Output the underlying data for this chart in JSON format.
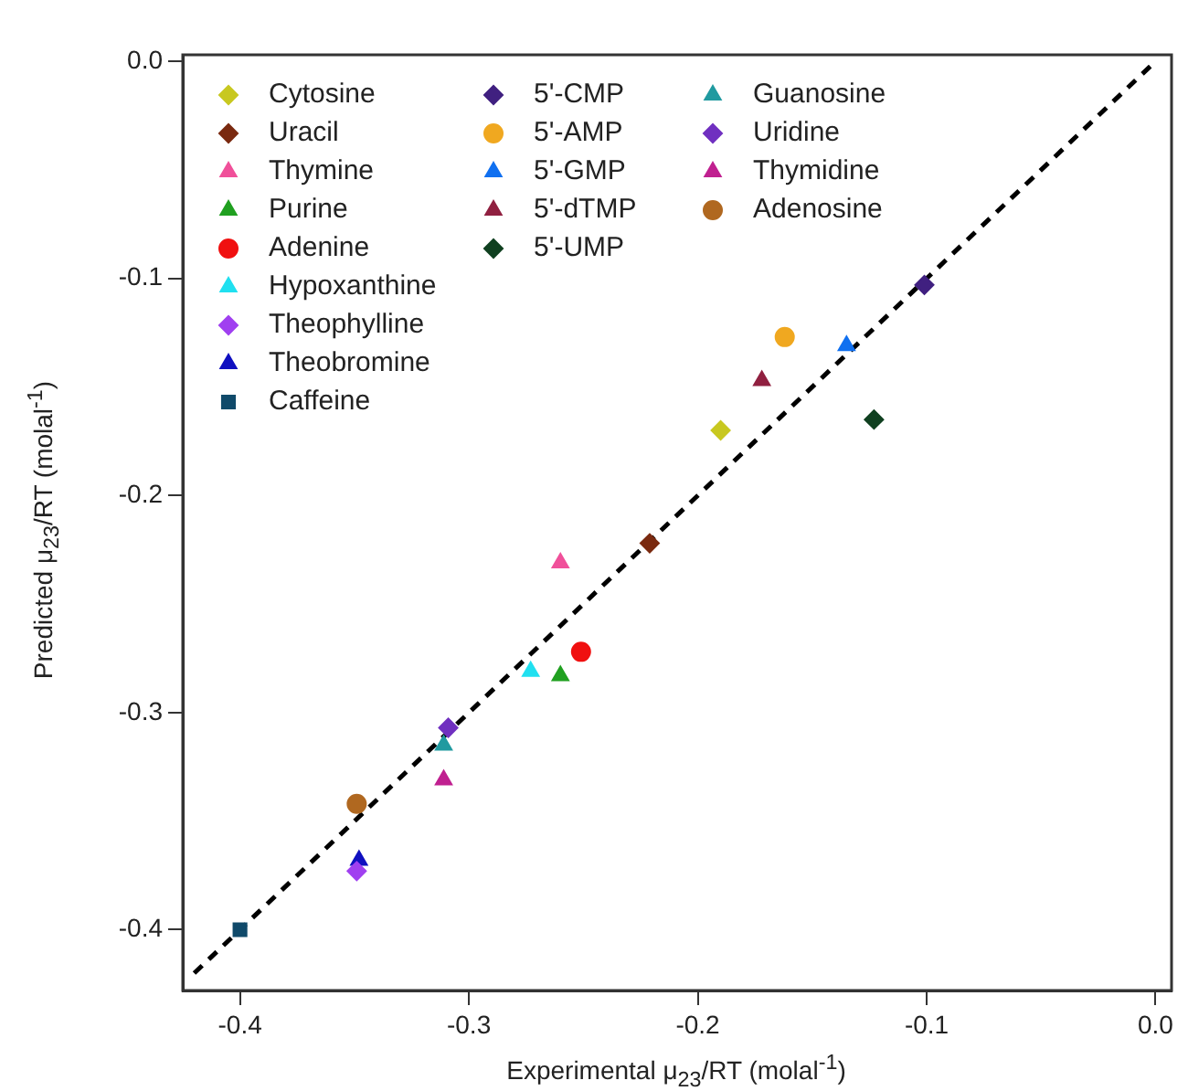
{
  "chart_data": {
    "type": "scatter",
    "xlabel": "Experimental μ$_{23}$/RT (molal$^{-1}$)",
    "ylabel": "Predicted μ$_{23}$/RT (molal$^{-1}$)",
    "xlim": [
      -0.425,
      0.007
    ],
    "ylim": [
      -0.428,
      0.003
    ],
    "xticks": [
      -0.4,
      -0.3,
      -0.2,
      -0.1,
      {
        "value": 0,
        "label": "0.0"
      }
    ],
    "yticks": [
      -0.4,
      -0.3,
      -0.2,
      -0.1,
      {
        "value": 0,
        "label": "0.0"
      }
    ],
    "grid": false,
    "legend": "top left",
    "series": [
      {
        "name": "Cytosine",
        "color": "#c8c820",
        "marker": "diamond",
        "x": [
          -0.19
        ],
        "values": [
          -0.17
        ]
      },
      {
        "name": "Uracil",
        "color": "#7a2a10",
        "marker": "diamond",
        "x": [
          -0.221
        ],
        "values": [
          -0.222
        ]
      },
      {
        "name": "Thymine",
        "color": "#f0509a",
        "marker": "triangle",
        "x": [
          -0.26
        ],
        "values": [
          -0.231
        ]
      },
      {
        "name": "Purine",
        "color": "#20a020",
        "marker": "triangle",
        "x": [
          -0.26
        ],
        "values": [
          -0.283
        ]
      },
      {
        "name": "Adenine",
        "color": "#f01010",
        "marker": "circle",
        "x": [
          -0.251
        ],
        "values": [
          -0.272
        ]
      },
      {
        "name": "Hypoxanthine",
        "color": "#20e0f0",
        "marker": "triangle",
        "x": [
          -0.273
        ],
        "values": [
          -0.281
        ]
      },
      {
        "name": "Theophylline",
        "color": "#a040f0",
        "marker": "diamond",
        "x": [
          -0.349
        ],
        "values": [
          -0.373
        ]
      },
      {
        "name": "Theobromine",
        "color": "#1010c0",
        "marker": "triangle",
        "x": [
          -0.348
        ],
        "values": [
          -0.368
        ]
      },
      {
        "name": "Caffeine",
        "color": "#104a6a",
        "marker": "square",
        "x": [
          -0.4
        ],
        "values": [
          -0.4
        ]
      },
      {
        "name": "5'-CMP",
        "color": "#402080",
        "marker": "diamond",
        "x": [
          -0.101
        ],
        "values": [
          -0.103
        ]
      },
      {
        "name": "5'-AMP",
        "color": "#f0a820",
        "marker": "circle",
        "x": [
          -0.162
        ],
        "values": [
          -0.127
        ]
      },
      {
        "name": "5'-GMP",
        "color": "#1070f0",
        "marker": "triangle",
        "x": [
          -0.135
        ],
        "values": [
          -0.131
        ]
      },
      {
        "name": "5'-dTMP",
        "color": "#902040",
        "marker": "triangle",
        "x": [
          -0.172
        ],
        "values": [
          -0.147
        ]
      },
      {
        "name": "5'-UMP",
        "color": "#104020",
        "marker": "diamond",
        "x": [
          -0.123
        ],
        "values": [
          -0.165
        ]
      },
      {
        "name": "Guanosine",
        "color": "#209aa0",
        "marker": "triangle",
        "x": [
          -0.311
        ],
        "values": [
          -0.315
        ]
      },
      {
        "name": "Uridine",
        "color": "#7030c0",
        "marker": "diamond",
        "x": [
          -0.309
        ],
        "values": [
          -0.307
        ]
      },
      {
        "name": "Thymidine",
        "color": "#c02090",
        "marker": "triangle",
        "x": [
          -0.311
        ],
        "values": [
          -0.331
        ]
      },
      {
        "name": "Adenosine",
        "color": "#b06820",
        "marker": "circle",
        "x": [
          -0.349
        ],
        "values": [
          -0.342
        ]
      },
      {
        "type": "line",
        "color": "#000000",
        "line_style": "dashed",
        "marker": "none",
        "x": [
          -0.42,
          0
        ],
        "values": [
          -0.42,
          0
        ]
      }
    ]
  }
}
